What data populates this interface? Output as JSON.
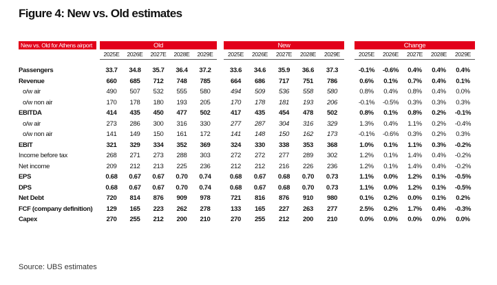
{
  "title": "Figure 4: New vs. Old estimates",
  "table": {
    "corner": "New vs. Old for Athens airport",
    "groups": [
      "Old",
      "New",
      "Change"
    ],
    "years": [
      "2025E",
      "2026E",
      "2027E",
      "2028E",
      "2029E"
    ],
    "rows": [
      {
        "label": "Passengers",
        "old": [
          "33.7",
          "34.8",
          "35.7",
          "36.4",
          "37.2"
        ],
        "new": [
          "33.6",
          "34.6",
          "35.9",
          "36.6",
          "37.3"
        ],
        "change": [
          "-0.1%",
          "-0.6%",
          "0.4%",
          "0.4%",
          "0.4%"
        ]
      },
      {
        "label": "Revenue",
        "old": [
          "660",
          "685",
          "712",
          "748",
          "785"
        ],
        "new": [
          "664",
          "686",
          "717",
          "751",
          "786"
        ],
        "change": [
          "0.6%",
          "0.1%",
          "0.7%",
          "0.4%",
          "0.1%"
        ]
      },
      {
        "label": "o/w air",
        "old": [
          "490",
          "507",
          "532",
          "555",
          "580"
        ],
        "new": [
          "494",
          "509",
          "536",
          "558",
          "580"
        ],
        "change": [
          "0.8%",
          "0.4%",
          "0.8%",
          "0.4%",
          "0.0%"
        ]
      },
      {
        "label": "o/w non air",
        "old": [
          "170",
          "178",
          "180",
          "193",
          "205"
        ],
        "new": [
          "170",
          "178",
          "181",
          "193",
          "206"
        ],
        "change": [
          "-0.1%",
          "-0.5%",
          "0.3%",
          "0.3%",
          "0.3%"
        ]
      },
      {
        "label": "EBITDA",
        "old": [
          "414",
          "435",
          "450",
          "477",
          "502"
        ],
        "new": [
          "417",
          "435",
          "454",
          "478",
          "502"
        ],
        "change": [
          "0.8%",
          "0.1%",
          "0.8%",
          "0.2%",
          "-0.1%"
        ]
      },
      {
        "label": "o/w air",
        "old": [
          "273",
          "286",
          "300",
          "316",
          "330"
        ],
        "new": [
          "277",
          "287",
          "304",
          "316",
          "329"
        ],
        "change": [
          "1.3%",
          "0.4%",
          "1.1%",
          "0.2%",
          "-0.4%"
        ]
      },
      {
        "label": "o/w non air",
        "old": [
          "141",
          "149",
          "150",
          "161",
          "172"
        ],
        "new": [
          "141",
          "148",
          "150",
          "162",
          "173"
        ],
        "change": [
          "-0.1%",
          "-0.6%",
          "0.3%",
          "0.2%",
          "0.3%"
        ]
      },
      {
        "label": "EBIT",
        "old": [
          "321",
          "329",
          "334",
          "352",
          "369"
        ],
        "new": [
          "324",
          "330",
          "338",
          "353",
          "368"
        ],
        "change": [
          "1.0%",
          "0.1%",
          "1.1%",
          "0.3%",
          "-0.2%"
        ]
      },
      {
        "label": "Income before tax",
        "old": [
          "268",
          "271",
          "273",
          "288",
          "303"
        ],
        "new": [
          "272",
          "272",
          "277",
          "289",
          "302"
        ],
        "change": [
          "1.2%",
          "0.1%",
          "1.4%",
          "0.4%",
          "-0.2%"
        ]
      },
      {
        "label": "Net income",
        "old": [
          "209",
          "212",
          "213",
          "225",
          "236"
        ],
        "new": [
          "212",
          "212",
          "216",
          "226",
          "236"
        ],
        "change": [
          "1.2%",
          "0.1%",
          "1.4%",
          "0.4%",
          "-0.2%"
        ]
      },
      {
        "label": "EPS",
        "old": [
          "0.68",
          "0.67",
          "0.67",
          "0.70",
          "0.74"
        ],
        "new": [
          "0.68",
          "0.67",
          "0.68",
          "0.70",
          "0.73"
        ],
        "change": [
          "1.1%",
          "0.0%",
          "1.2%",
          "0.1%",
          "-0.5%"
        ]
      },
      {
        "label": "DPS",
        "old": [
          "0.68",
          "0.67",
          "0.67",
          "0.70",
          "0.74"
        ],
        "new": [
          "0.68",
          "0.67",
          "0.68",
          "0.70",
          "0.73"
        ],
        "change": [
          "1.1%",
          "0.0%",
          "1.2%",
          "0.1%",
          "-0.5%"
        ]
      },
      {
        "label": "Net Debt",
        "old": [
          "720",
          "814",
          "876",
          "909",
          "978"
        ],
        "new": [
          "721",
          "816",
          "876",
          "910",
          "980"
        ],
        "change": [
          "0.1%",
          "0.2%",
          "0.0%",
          "0.1%",
          "0.2%"
        ]
      },
      {
        "label": "FCF (company definition)",
        "old": [
          "129",
          "165",
          "223",
          "262",
          "278"
        ],
        "new": [
          "133",
          "165",
          "227",
          "263",
          "277"
        ],
        "change": [
          "2.5%",
          "0.2%",
          "1.7%",
          "0.4%",
          "-0.3%"
        ]
      },
      {
        "label": "Capex",
        "old": [
          "270",
          "255",
          "212",
          "200",
          "210"
        ],
        "new": [
          "270",
          "255",
          "212",
          "200",
          "210"
        ],
        "change": [
          "0.0%",
          "0.0%",
          "0.0%",
          "0.0%",
          "0.0%"
        ]
      }
    ]
  },
  "source": "Source: UBS estimates"
}
